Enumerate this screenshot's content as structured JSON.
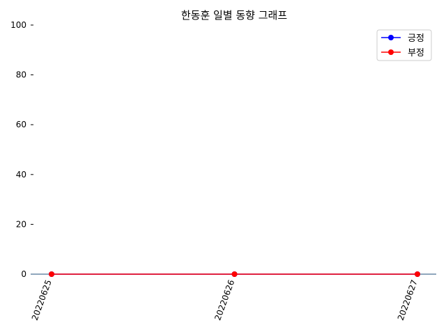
{
  "chart_data": {
    "type": "line",
    "title": "한동훈 일별 동향 그래프",
    "xlabel": "",
    "ylabel": "",
    "categories": [
      "20220625",
      "20220626",
      "20220627"
    ],
    "ylim": [
      0,
      100
    ],
    "yticks": [
      0,
      20,
      40,
      60,
      80,
      100
    ],
    "grid": false,
    "legend_position": "top-right",
    "series": [
      {
        "name": "긍정",
        "color": "#0000ff",
        "marker": "circle",
        "values": [
          0,
          0,
          0
        ]
      },
      {
        "name": "부정",
        "color": "#ff0000",
        "marker": "circle",
        "values": [
          0,
          0,
          0
        ]
      }
    ]
  }
}
